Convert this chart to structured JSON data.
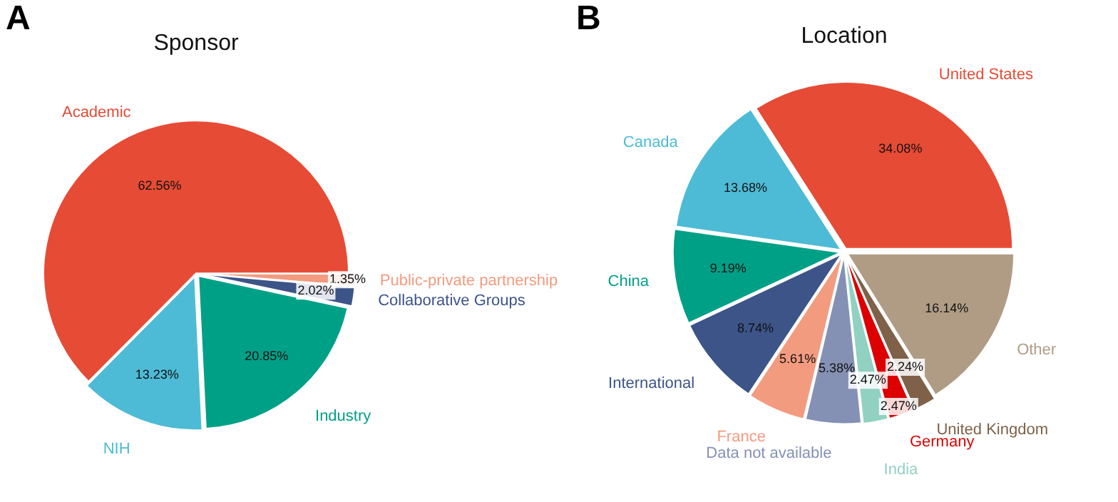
{
  "chart_data": [
    {
      "type": "pie",
      "title": "Sponsor",
      "annotations": [
        "A"
      ],
      "categories": [
        "Public-private partnership",
        "Collaborative Groups",
        "Industry",
        "NIH",
        "Academic"
      ],
      "values": [
        1.35,
        2.02,
        20.85,
        13.23,
        62.56
      ],
      "value_labels": [
        "1.35%",
        "2.02%",
        "20.85%",
        "13.23%",
        "62.56%"
      ],
      "colors": [
        "#f39b7f",
        "#3c5488",
        "#00a087",
        "#4dbbd5",
        "#e64b35"
      ]
    },
    {
      "type": "pie",
      "title": "Location",
      "annotations": [
        "B"
      ],
      "categories": [
        "Other",
        "United Kingdom",
        "Germany",
        "India",
        "Data not available",
        "France",
        "International",
        "China",
        "Canada",
        "United States"
      ],
      "values": [
        16.14,
        2.24,
        2.47,
        2.47,
        5.38,
        5.61,
        8.74,
        9.19,
        13.68,
        34.08
      ],
      "value_labels": [
        "16.14%",
        "2.24%",
        "2.47%",
        "2.47%",
        "5.38%",
        "5.61%",
        "8.74%",
        "9.19%",
        "13.68%",
        "34.08%"
      ],
      "colors": [
        "#b09c85",
        "#7e6148",
        "#dc0000",
        "#91d1c2",
        "#8491b4",
        "#f39b7f",
        "#3c5488",
        "#00a087",
        "#4dbbd5",
        "#e64b35"
      ]
    }
  ]
}
